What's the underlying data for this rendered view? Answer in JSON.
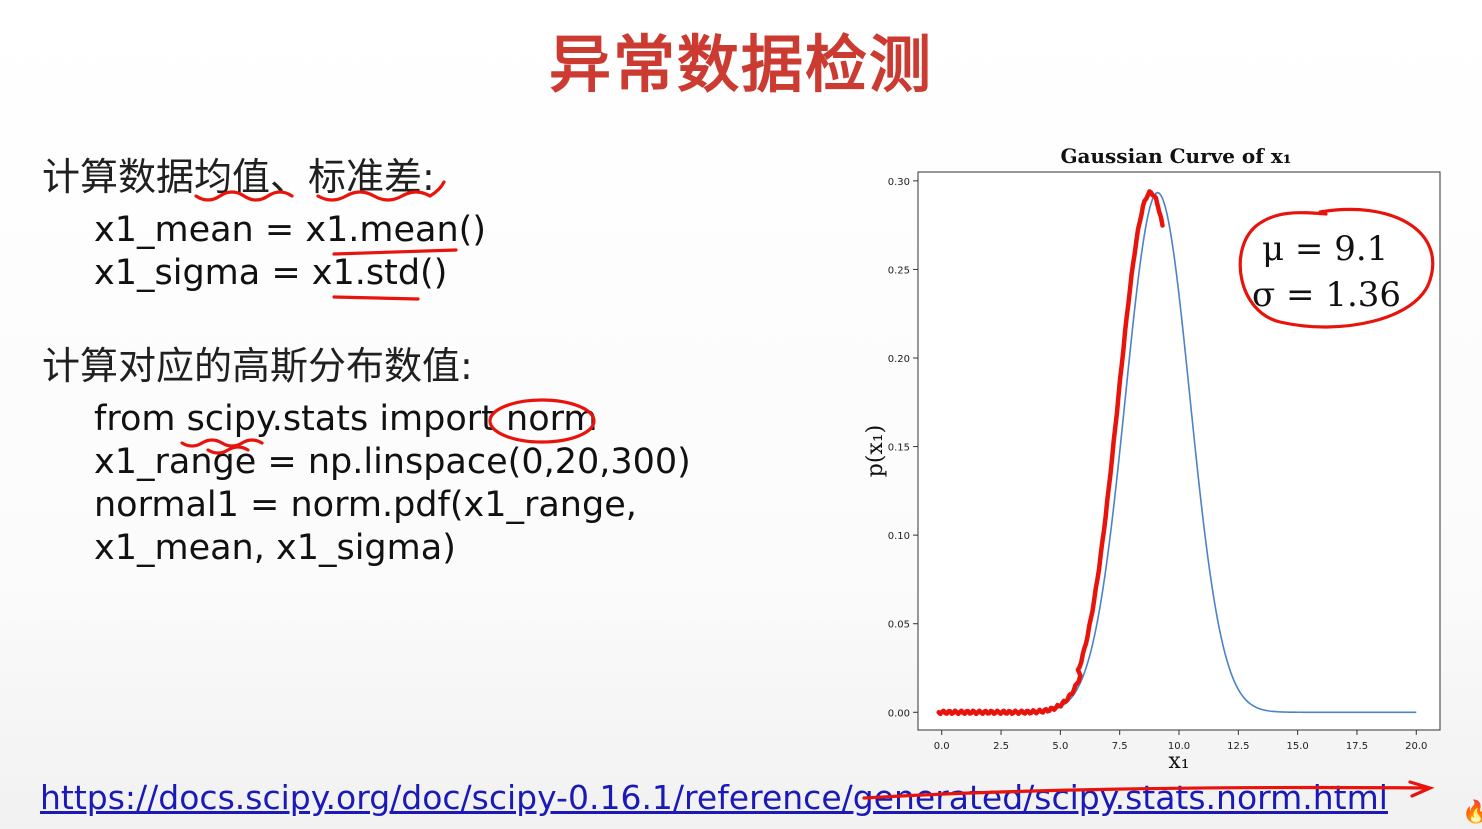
{
  "slide": {
    "title": "异常数据检测",
    "heading1": "计算数据均值、标准差:",
    "code1": [
      "x1_mean = x1.mean()",
      "x1_sigma = x1.std()"
    ],
    "heading2": "计算对应的高斯分布数值:",
    "code2": [
      "from scipy.stats import norm",
      "x1_range = np.linspace(0,20,300)",
      "normal1 = norm.pdf(x1_range,",
      "x1_mean, x1_sigma)"
    ],
    "url": "https://docs.scipy.org/doc/scipy-0.16.1/reference/generated/scipy.stats.norm.html"
  },
  "annotations": {
    "mu_text": "μ = 9.1",
    "sigma_text": "σ = 1.36",
    "ink_color": "#e8140c"
  },
  "chart_data": {
    "type": "line",
    "title": "Gaussian Curve of x₁",
    "xlabel": "x₁",
    "ylabel": "p(x₁)",
    "xlim": [
      -1,
      21
    ],
    "ylim": [
      -0.01,
      0.305
    ],
    "xticks": [
      "0.0",
      "2.5",
      "5.0",
      "7.5",
      "10.0",
      "12.5",
      "15.0",
      "17.5",
      "20.0"
    ],
    "yticks": [
      "0.00",
      "0.05",
      "0.10",
      "0.15",
      "0.20",
      "0.25",
      "0.30"
    ],
    "series": [
      {
        "distribution": "normal pdf",
        "mean": 9.1,
        "sigma": 1.36,
        "x_range": [
          0,
          20
        ],
        "points": 300,
        "color": "#4c82c8"
      }
    ]
  }
}
